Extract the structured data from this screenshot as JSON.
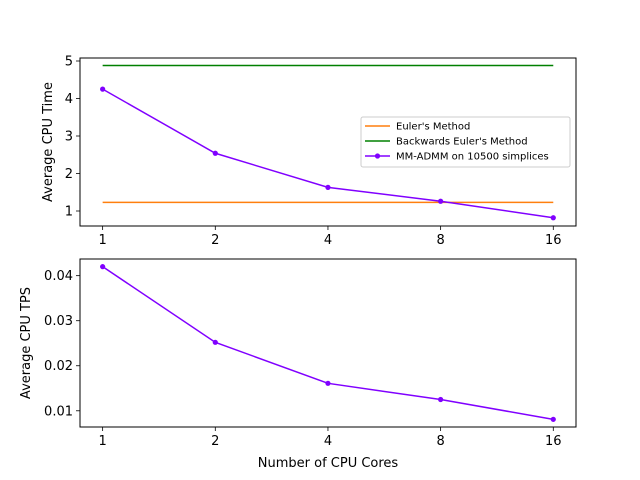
{
  "chart_data": [
    {
      "type": "line",
      "x_scale": "log2",
      "x": [
        1,
        2,
        4,
        8,
        16
      ],
      "x_tick_labels": [
        "1",
        "2",
        "4",
        "8",
        "16"
      ],
      "y_ticks": [
        1,
        2,
        3,
        4,
        5
      ],
      "y_tick_labels": [
        "1",
        "2",
        "3",
        "4",
        "5"
      ],
      "xlabel": "",
      "ylabel": "Average CPU Time",
      "xlim": [
        0.87,
        18.4
      ],
      "ylim": [
        0.6,
        5.08
      ],
      "grid": false,
      "legend_position": "center-right",
      "series": [
        {
          "name": "Euler's Method",
          "color": "#ff7f0e",
          "marker": "none",
          "values": [
            1.23,
            1.23,
            1.23,
            1.23,
            1.23
          ]
        },
        {
          "name": "Backwards Euler's Method",
          "color": "#008000",
          "marker": "none",
          "values": [
            4.88,
            4.88,
            4.88,
            4.88,
            4.88
          ]
        },
        {
          "name": "MM-ADMM on 10500 simplices",
          "color": "#8000ff",
          "marker": "circle",
          "values": [
            4.25,
            2.54,
            1.63,
            1.26,
            0.82
          ]
        }
      ]
    },
    {
      "type": "line",
      "x_scale": "log2",
      "x": [
        1,
        2,
        4,
        8,
        16
      ],
      "x_tick_labels": [
        "1",
        "2",
        "4",
        "8",
        "16"
      ],
      "y_ticks": [
        0.01,
        0.02,
        0.03,
        0.04
      ],
      "y_tick_labels": [
        "0.01",
        "0.02",
        "0.03",
        "0.04"
      ],
      "xlabel": "Number of CPU Cores",
      "ylabel": "Average CPU TPS",
      "xlim": [
        0.87,
        18.4
      ],
      "ylim": [
        0.0064,
        0.0437
      ],
      "grid": false,
      "series": [
        {
          "color": "#8000ff",
          "marker": "circle",
          "values": [
            0.042,
            0.0252,
            0.0161,
            0.0125,
            0.0081
          ]
        }
      ]
    }
  ]
}
